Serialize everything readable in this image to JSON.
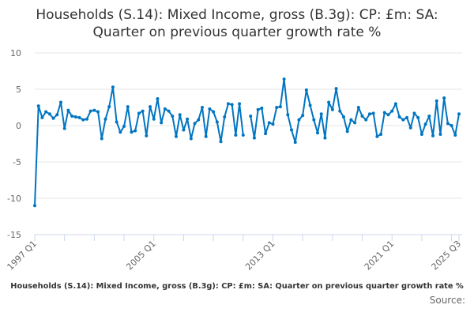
{
  "chart_data": {
    "type": "line",
    "title": "Households (S.14): Mixed Income, gross (B.3g): CP: £m: SA: Quarter on previous quarter growth rate %",
    "xlabel": "",
    "ylabel": "",
    "ylim": [
      -15,
      10
    ],
    "yticks": [
      10,
      5,
      0,
      -5,
      -10,
      -15
    ],
    "xtick_labels": [
      "1997 Q1",
      "2005 Q1",
      "2013 Q1",
      "2021 Q1",
      "2025 Q3"
    ],
    "x_start": "1997 Q1",
    "x_end": "2025 Q3",
    "grid": "horizontal",
    "line_color": "#0075c2",
    "values": [
      -11.0,
      2.7,
      1.1,
      1.9,
      1.6,
      1.0,
      1.5,
      3.2,
      -0.4,
      2.1,
      1.3,
      1.2,
      1.1,
      0.8,
      0.9,
      2.0,
      2.1,
      1.9,
      -1.8,
      0.9,
      2.6,
      5.3,
      0.5,
      -0.9,
      -0.1,
      2.6,
      -0.9,
      -0.7,
      1.7,
      2.0,
      -1.4,
      2.6,
      0.9,
      3.7,
      0.4,
      2.3,
      2.0,
      1.3,
      -1.5,
      1.5,
      -0.6,
      0.9,
      -1.8,
      0.3,
      0.8,
      2.5,
      -1.5,
      2.3,
      1.9,
      0.5,
      -2.2,
      1.2,
      3.0,
      2.9,
      -1.3,
      3.0,
      -1.3,
      null,
      1.3,
      -1.7,
      2.2,
      2.4,
      -1.1,
      0.4,
      0.2,
      2.5,
      2.6,
      6.4,
      1.5,
      -0.6,
      -2.3,
      0.8,
      1.4,
      4.9,
      2.8,
      0.8,
      -1.0,
      1.6,
      -1.7,
      3.2,
      2.2,
      5.1,
      2.0,
      1.2,
      -0.8,
      0.8,
      0.4,
      2.5,
      1.3,
      0.8,
      1.6,
      1.7,
      -1.5,
      -1.2,
      1.8,
      1.5,
      2.0,
      3.0,
      1.2,
      0.8,
      1.1,
      -0.3,
      1.7,
      1.1,
      -1.2,
      0.2,
      1.3,
      -1.4,
      3.4,
      -1.2,
      3.8,
      0.3,
      0.0,
      -1.3,
      1.6
    ]
  },
  "header": {
    "title_line1": "Households (S.14): Mixed Income, gross (B.3g): CP: £m: SA:",
    "title_line2": "Quarter on previous quarter growth rate %"
  },
  "footer": {
    "series_title": "Households (S.14): Mixed Income, gross (B.3g): CP: £m: SA: Quarter on previous quarter growth rate %",
    "source": "Source:"
  }
}
